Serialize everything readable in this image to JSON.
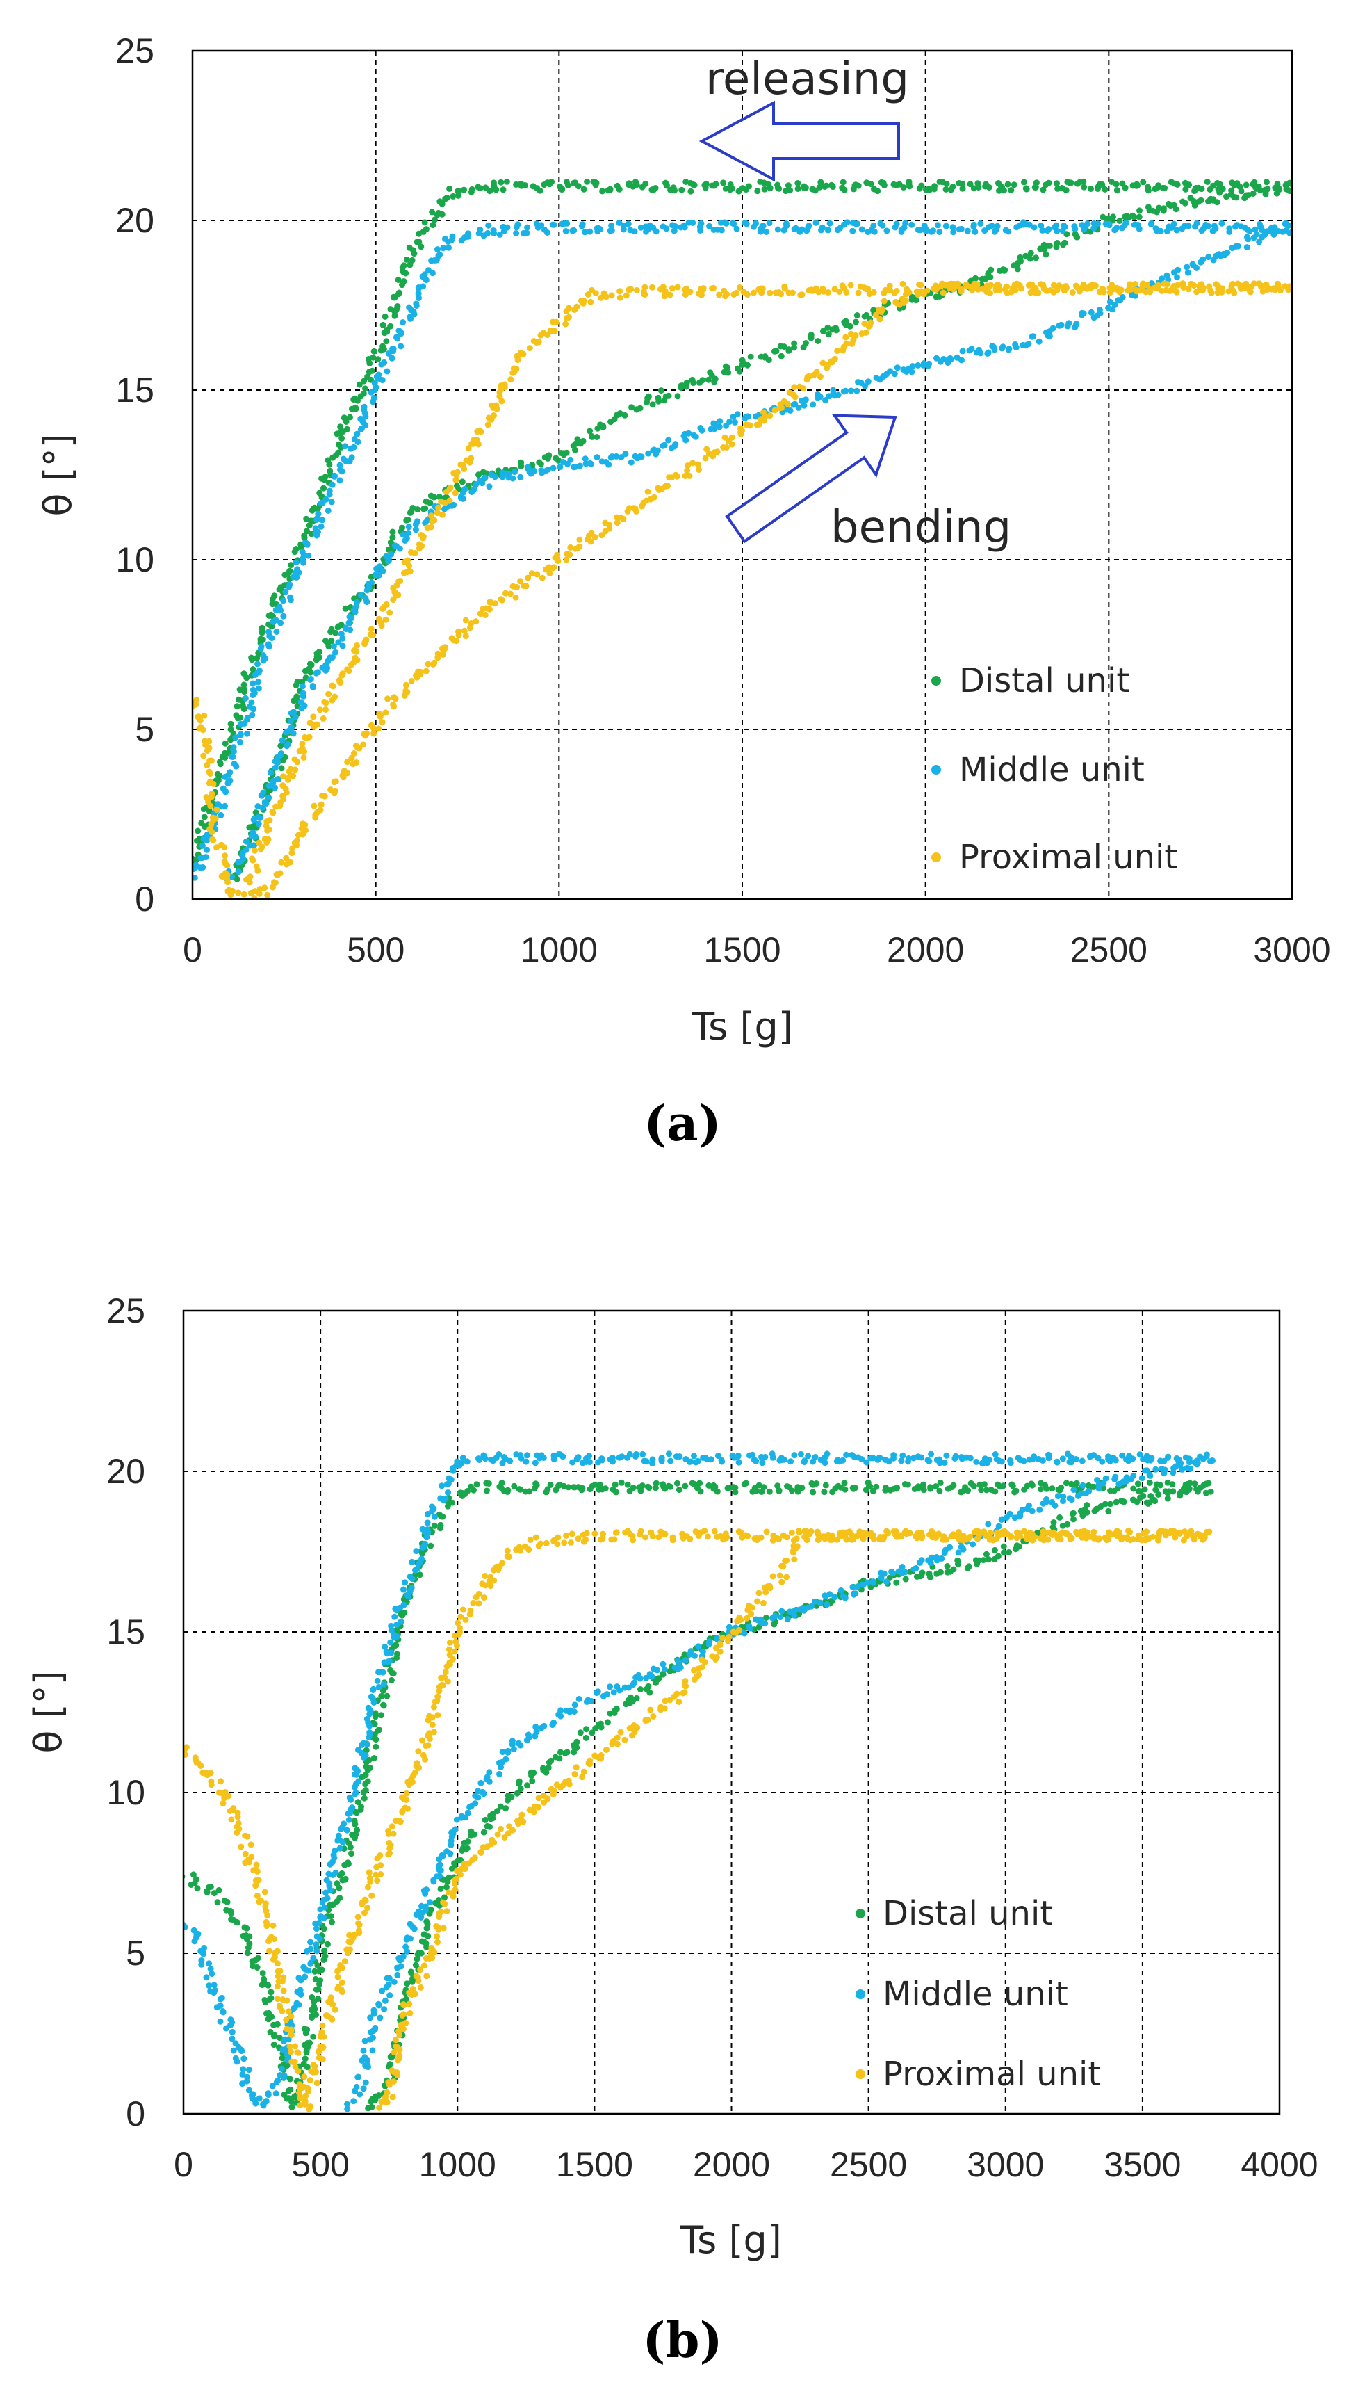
{
  "colors": {
    "distal": "#1aa64a",
    "middle": "#1ab2e6",
    "proximal": "#f5c21a",
    "arrow": "#2a3cc8"
  },
  "chart_data": [
    {
      "type": "scatter",
      "caption": "(a)",
      "xlabel": "Ts [g]",
      "ylabel": "θ [°]",
      "xlim": [
        0,
        3000
      ],
      "ylim": [
        0,
        25
      ],
      "xticks": [
        "0",
        "500",
        "1000",
        "1500",
        "2000",
        "2500",
        "3000"
      ],
      "yticks": [
        "0",
        "5",
        "10",
        "15",
        "20",
        "25"
      ],
      "grid": true,
      "legend_position": "bottom-right",
      "annotations": {
        "releasing": "releasing",
        "bending": "bending"
      },
      "series": [
        {
          "name": "Distal unit",
          "key": "distal",
          "points": [
            [
              0,
              1
            ],
            [
              50,
              3
            ],
            [
              100,
              4.5
            ],
            [
              150,
              6.5
            ],
            [
              200,
              8
            ],
            [
              300,
              10.5
            ],
            [
              400,
              13.5
            ],
            [
              500,
              16
            ],
            [
              600,
              19
            ],
            [
              700,
              20.8
            ],
            [
              800,
              21
            ],
            [
              1000,
              21
            ],
            [
              1500,
              21
            ],
            [
              2000,
              21
            ],
            [
              2500,
              21
            ],
            [
              3000,
              21
            ],
            [
              3000,
              21
            ],
            [
              2700,
              20.5
            ],
            [
              2500,
              20
            ],
            [
              2300,
              19
            ],
            [
              2100,
              18
            ],
            [
              2000,
              17.8
            ],
            [
              1800,
              17
            ],
            [
              1500,
              15.7
            ],
            [
              1200,
              14.5
            ],
            [
              1000,
              13
            ],
            [
              800,
              12.5
            ],
            [
              600,
              11.5
            ],
            [
              500,
              9.5
            ],
            [
              400,
              8
            ],
            [
              300,
              6.5
            ],
            [
              250,
              4.5
            ],
            [
              200,
              3
            ],
            [
              150,
              1.5
            ],
            [
              100,
              0.5
            ]
          ]
        },
        {
          "name": "Middle unit",
          "key": "middle",
          "points": [
            [
              0,
              0.5
            ],
            [
              50,
              2
            ],
            [
              100,
              3.5
            ],
            [
              150,
              5.5
            ],
            [
              200,
              7.5
            ],
            [
              300,
              10
            ],
            [
              400,
              12.5
            ],
            [
              500,
              15
            ],
            [
              600,
              17.5
            ],
            [
              700,
              19.5
            ],
            [
              800,
              19.7
            ],
            [
              1000,
              19.8
            ],
            [
              1500,
              19.8
            ],
            [
              2000,
              19.8
            ],
            [
              2500,
              19.8
            ],
            [
              3000,
              19.8
            ],
            [
              2900,
              19.5
            ],
            [
              2700,
              18.5
            ],
            [
              2500,
              17.5
            ],
            [
              2300,
              16.5
            ],
            [
              2000,
              15.8
            ],
            [
              1800,
              15
            ],
            [
              1500,
              14.2
            ],
            [
              1200,
              13
            ],
            [
              1000,
              12.8
            ],
            [
              800,
              12.3
            ],
            [
              600,
              11
            ],
            [
              500,
              9.5
            ],
            [
              400,
              7.5
            ],
            [
              300,
              6
            ],
            [
              250,
              4.5
            ],
            [
              200,
              3
            ],
            [
              150,
              1.5
            ],
            [
              100,
              0.5
            ]
          ]
        },
        {
          "name": "Proximal unit",
          "key": "proximal",
          "points": [
            [
              0,
              6
            ],
            [
              30,
              5
            ],
            [
              60,
              2
            ],
            [
              100,
              0.2
            ],
            [
              150,
              0.3
            ],
            [
              200,
              2
            ],
            [
              300,
              4.5
            ],
            [
              400,
              6.5
            ],
            [
              500,
              8
            ],
            [
              600,
              10
            ],
            [
              700,
              12
            ],
            [
              800,
              14
            ],
            [
              900,
              16
            ],
            [
              1000,
              17
            ],
            [
              1100,
              17.8
            ],
            [
              1200,
              17.9
            ],
            [
              1500,
              17.9
            ],
            [
              2000,
              18
            ],
            [
              2500,
              18
            ],
            [
              3000,
              18
            ],
            [
              2000,
              18
            ],
            [
              1900,
              17.5
            ],
            [
              1800,
              16.5
            ],
            [
              1600,
              14.5
            ],
            [
              1400,
              13
            ],
            [
              1200,
              11.5
            ],
            [
              1000,
              10
            ],
            [
              800,
              8.5
            ],
            [
              600,
              6.5
            ],
            [
              500,
              5.2
            ],
            [
              400,
              3.5
            ],
            [
              300,
              2
            ],
            [
              250,
              1
            ],
            [
              200,
              0.2
            ],
            [
              150,
              0
            ]
          ]
        }
      ]
    },
    {
      "type": "scatter",
      "caption": "(b)",
      "xlabel": "Ts [g]",
      "ylabel": "θ [°]",
      "xlim": [
        0,
        4000
      ],
      "ylim": [
        0,
        25
      ],
      "xticks": [
        "0",
        "500",
        "1000",
        "1500",
        "2000",
        "2500",
        "3000",
        "3500",
        "4000"
      ],
      "yticks": [
        "0",
        "5",
        "10",
        "15",
        "20",
        "25"
      ],
      "grid": true,
      "legend_position": "bottom-right",
      "series": [
        {
          "name": "Distal unit",
          "key": "distal",
          "points": [
            [
              0,
              7.5
            ],
            [
              100,
              7
            ],
            [
              200,
              6
            ],
            [
              300,
              4
            ],
            [
              350,
              2
            ],
            [
              400,
              0.2
            ],
            [
              450,
              2
            ],
            [
              500,
              5
            ],
            [
              600,
              8
            ],
            [
              700,
              12
            ],
            [
              800,
              15.5
            ],
            [
              900,
              18
            ],
            [
              1000,
              19.3
            ],
            [
              1100,
              19.5
            ],
            [
              1250,
              19.5
            ],
            [
              1500,
              19.5
            ],
            [
              2000,
              19.5
            ],
            [
              2500,
              19.5
            ],
            [
              3000,
              19.5
            ],
            [
              3500,
              19.5
            ],
            [
              3750,
              19.5
            ],
            [
              3300,
              18.8
            ],
            [
              3000,
              17.5
            ],
            [
              2800,
              17
            ],
            [
              2500,
              16.5
            ],
            [
              2200,
              15.5
            ],
            [
              2000,
              15
            ],
            [
              1800,
              14
            ],
            [
              1500,
              12
            ],
            [
              1200,
              10
            ],
            [
              1000,
              8
            ],
            [
              900,
              6
            ],
            [
              800,
              3
            ],
            [
              750,
              1
            ],
            [
              700,
              0.3
            ],
            [
              650,
              0.2
            ]
          ]
        },
        {
          "name": "Middle unit",
          "key": "middle",
          "points": [
            [
              0,
              6
            ],
            [
              50,
              5.5
            ],
            [
              100,
              4
            ],
            [
              150,
              3
            ],
            [
              200,
              2
            ],
            [
              250,
              0.5
            ],
            [
              300,
              0.2
            ],
            [
              350,
              1
            ],
            [
              400,
              3
            ],
            [
              500,
              6
            ],
            [
              600,
              9.5
            ],
            [
              700,
              13
            ],
            [
              800,
              16
            ],
            [
              900,
              18.5
            ],
            [
              1000,
              20.2
            ],
            [
              1100,
              20.4
            ],
            [
              1250,
              20.4
            ],
            [
              1500,
              20.4
            ],
            [
              2000,
              20.4
            ],
            [
              2500,
              20.4
            ],
            [
              3000,
              20.4
            ],
            [
              3500,
              20.4
            ],
            [
              3750,
              20.4
            ],
            [
              3300,
              19.5
            ],
            [
              3000,
              18.5
            ],
            [
              2800,
              17.5
            ],
            [
              2500,
              16.5
            ],
            [
              2200,
              15.5
            ],
            [
              2000,
              15
            ],
            [
              1800,
              14
            ],
            [
              1500,
              13
            ],
            [
              1200,
              11.5
            ],
            [
              1000,
              9
            ],
            [
              900,
              7
            ],
            [
              800,
              5
            ],
            [
              700,
              3
            ],
            [
              650,
              1
            ],
            [
              600,
              0.2
            ]
          ]
        },
        {
          "name": "Proximal unit",
          "key": "proximal",
          "points": [
            [
              0,
              11.4
            ],
            [
              100,
              10.5
            ],
            [
              200,
              9
            ],
            [
              300,
              6.5
            ],
            [
              350,
              4
            ],
            [
              400,
              2
            ],
            [
              450,
              0.2
            ],
            [
              500,
              2
            ],
            [
              600,
              5
            ],
            [
              700,
              7.5
            ],
            [
              800,
              9.5
            ],
            [
              900,
              12
            ],
            [
              1000,
              15
            ],
            [
              1100,
              16.5
            ],
            [
              1200,
              17.5
            ],
            [
              1300,
              17.8
            ],
            [
              1500,
              18
            ],
            [
              2000,
              18
            ],
            [
              2500,
              18
            ],
            [
              3000,
              18
            ],
            [
              3750,
              18
            ],
            [
              2250,
              18
            ],
            [
              2200,
              17
            ],
            [
              2100,
              16
            ],
            [
              2000,
              15
            ],
            [
              1800,
              13
            ],
            [
              1500,
              11
            ],
            [
              1200,
              9
            ],
            [
              1000,
              7.5
            ],
            [
              900,
              5
            ],
            [
              800,
              3
            ],
            [
              750,
              0.5
            ],
            [
              700,
              0.2
            ]
          ]
        }
      ]
    }
  ]
}
